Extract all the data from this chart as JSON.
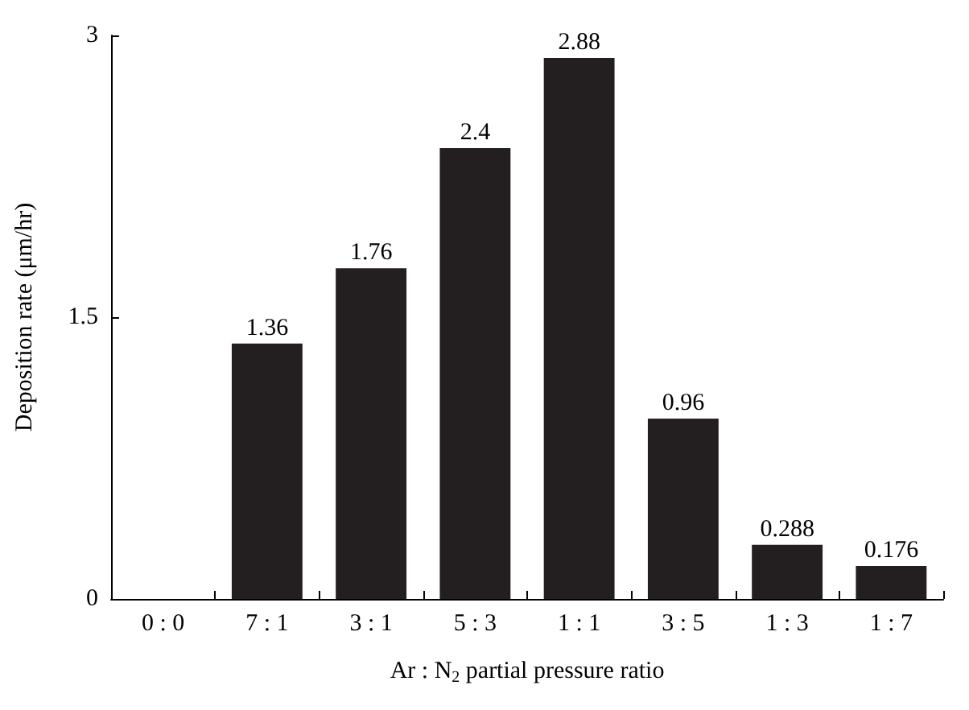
{
  "chart_data": {
    "type": "bar",
    "xlabel": "Ar : N$_{2}$ partial pressure ratio",
    "ylabel": "Deposition rate (μm/hr)",
    "categories": [
      "0 : 0",
      "7 : 1",
      "3 : 1",
      "5 : 3",
      "1 : 1",
      "3 : 5",
      "1 : 3",
      "1 : 7"
    ],
    "values": [
      null,
      1.36,
      1.76,
      2.4,
      2.88,
      0.96,
      0.288,
      0.176
    ],
    "color": "#231f20",
    "ylim": [
      0,
      3
    ],
    "yticks": [
      0,
      1.5,
      3
    ],
    "data_labels": true,
    "grid": false
  }
}
